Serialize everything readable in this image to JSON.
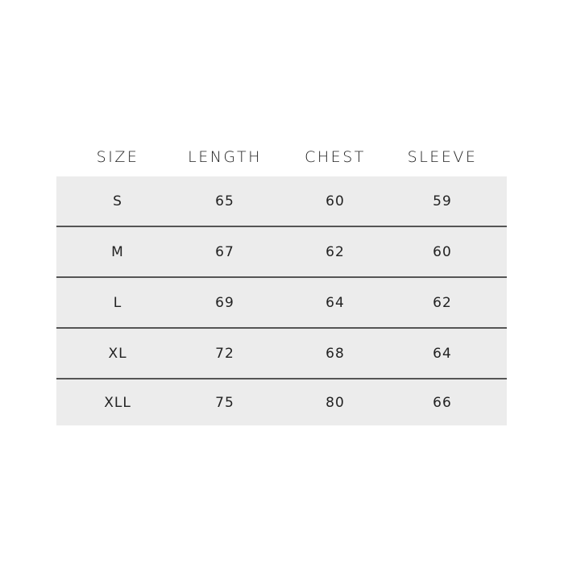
{
  "size_chart": {
    "headers": [
      "SIZE",
      "LENGTH",
      "CHEST",
      "SLEEVE"
    ],
    "rows": [
      [
        "S",
        "65",
        "60",
        "59"
      ],
      [
        "M",
        "67",
        "62",
        "60"
      ],
      [
        "L",
        "69",
        "64",
        "62"
      ],
      [
        "XL",
        "72",
        "68",
        "64"
      ],
      [
        "XLL",
        "75",
        "80",
        "66"
      ]
    ]
  }
}
